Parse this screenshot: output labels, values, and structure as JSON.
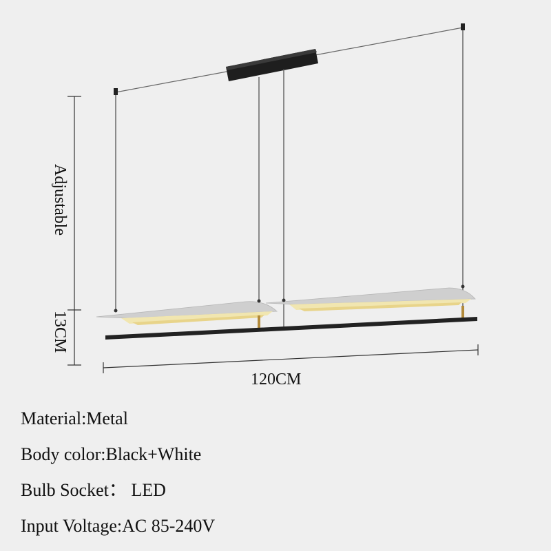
{
  "dimensions": {
    "height_label": "Adjustable",
    "shade_height_label": "13CM",
    "length_label": "120CM"
  },
  "specs": [
    {
      "label": "Material:",
      "value": "Metal"
    },
    {
      "label": "Body color:",
      "value": "Black+White"
    },
    {
      "label": "Bulb Socket：",
      "value": " LED"
    },
    {
      "label": "Input Voltage:",
      "value": "AC 85-240V"
    }
  ],
  "colors": {
    "background": "#efefef",
    "canopy": "#1e1e1e",
    "shade": "#d5d5d5",
    "light_glow": "#f1e6b0",
    "bar": "#222222",
    "wire": "#555555"
  }
}
